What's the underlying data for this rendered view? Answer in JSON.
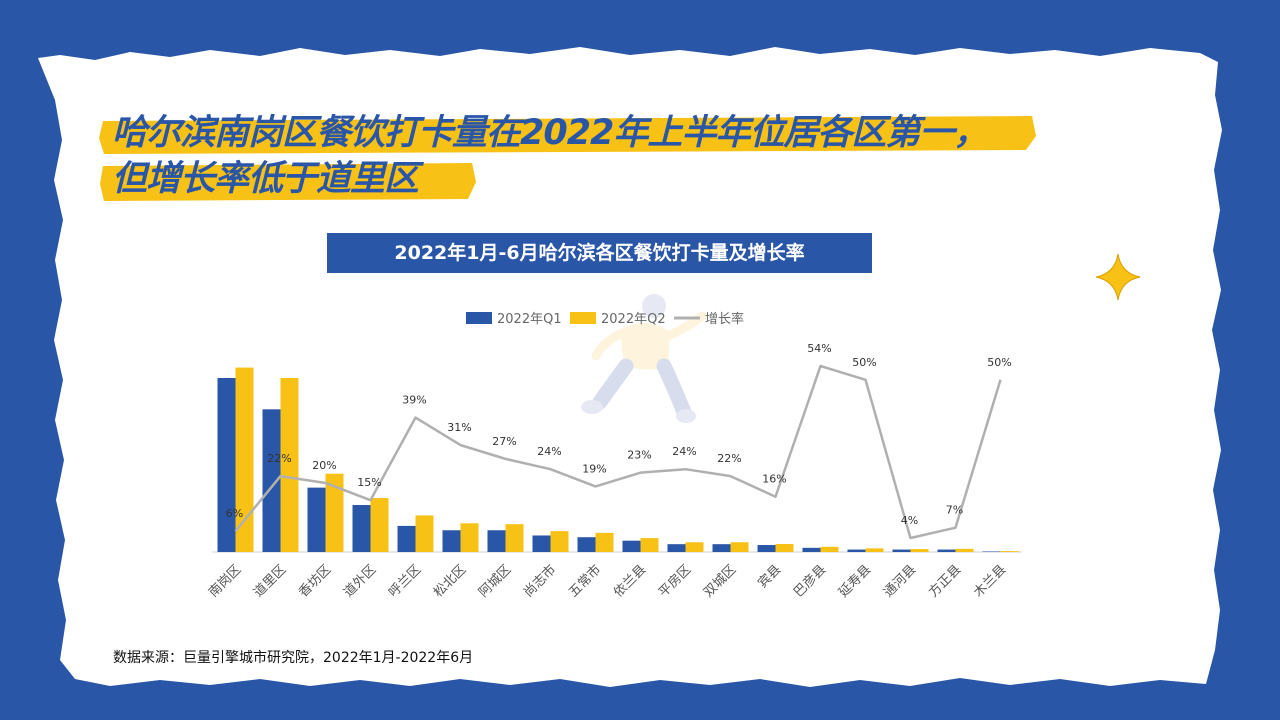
{
  "title": {
    "line1": "哈尔滨南岗区餐饮打卡量在2022年上半年位居各区第一，",
    "line2": "但增长率低于道里区"
  },
  "source": "数据来源：巨量引擎城市研究院，2022年1月-2022年6月",
  "colors": {
    "background": "#2a56a8",
    "highlight": "#f8c116",
    "q1": "#2a56a8",
    "q2": "#f8c116",
    "growth": "#b0b0b0"
  },
  "chart_data": {
    "type": "bar",
    "title": "2022年1月-6月哈尔滨各区餐饮打卡量及增长率",
    "categories": [
      "南岗区",
      "道里区",
      "香坊区",
      "道外区",
      "呼兰区",
      "松北区",
      "阿城区",
      "尚志市",
      "五常市",
      "依兰县",
      "平房区",
      "双城区",
      "宾县",
      "巴彦县",
      "延寿县",
      "通河县",
      "方正县",
      "木兰县"
    ],
    "series": [
      {
        "name": "2022年Q1",
        "kind": "bar",
        "values": [
          100,
          82,
          37,
          27,
          15,
          12.5,
          12.5,
          9.5,
          8.5,
          6.5,
          4.5,
          4.5,
          4.0,
          2.4,
          1.4,
          1.4,
          1.4,
          0.3
        ]
      },
      {
        "name": "2022年Q2",
        "kind": "bar",
        "values": [
          106,
          100,
          45,
          31,
          21,
          16.5,
          16,
          12,
          11,
          8,
          5.6,
          5.6,
          4.6,
          3.0,
          2.1,
          1.7,
          1.8,
          0.5
        ]
      },
      {
        "name": "增长率",
        "kind": "line",
        "unit": "%",
        "values": [
          6,
          22,
          20,
          15,
          39,
          31,
          27,
          24,
          19,
          23,
          24,
          22,
          16,
          54,
          50,
          4,
          7,
          50
        ],
        "labels": [
          "6%",
          "22%",
          "20%",
          "15%",
          "39%",
          "31%",
          "27%",
          "24%",
          "19%",
          "23%",
          "24%",
          "22%",
          "16%",
          "54%",
          "50%",
          "4%",
          "7%",
          "50%"
        ]
      }
    ],
    "legend_position": "top-center",
    "grid": false
  }
}
